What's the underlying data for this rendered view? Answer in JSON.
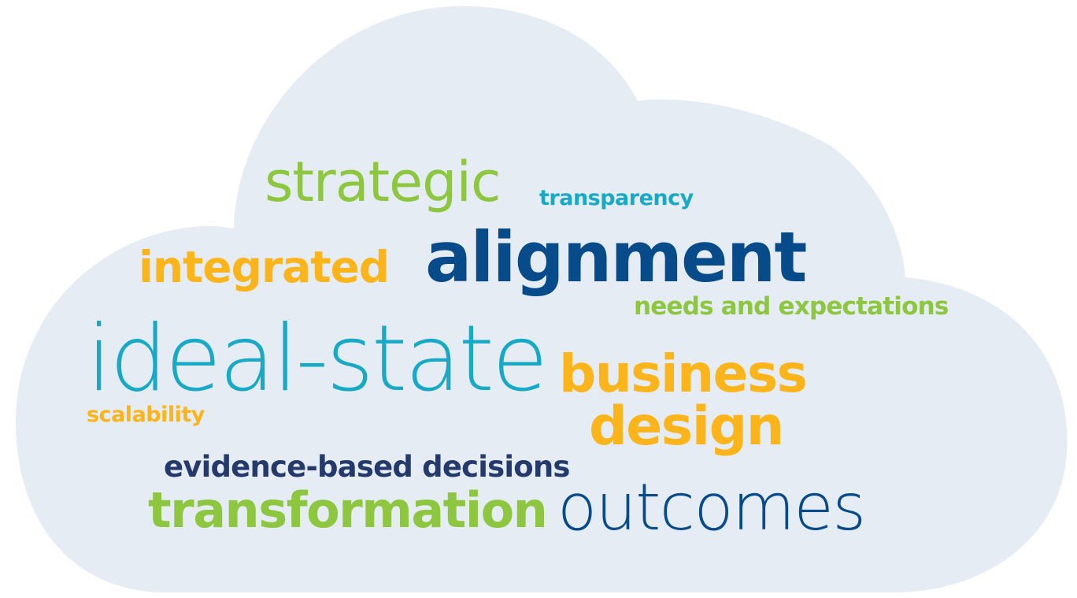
{
  "colors": {
    "cloud_fill": "#e6ecf4",
    "green": "#8dc63f",
    "teal": "#17a9c6",
    "orange": "#fbb41a",
    "dark_blue": "#084b8a",
    "navy": "#253a6c"
  },
  "words": {
    "strategic": {
      "text": "strategic",
      "color": "#8dc63f"
    },
    "transparency": {
      "text": "transparency",
      "color": "#17a9c6"
    },
    "integrated": {
      "text": "integrated",
      "color": "#fbb41a"
    },
    "alignment": {
      "text": "alignment",
      "color": "#084b8a"
    },
    "needs": {
      "text": "needs and expectations",
      "color": "#8dc63f"
    },
    "ideal_state": {
      "text": "ideal-state",
      "color": "#17a9c6"
    },
    "business": {
      "text": "business",
      "color": "#fbb41a"
    },
    "scalability": {
      "text": "scalability",
      "color": "#fbb41a"
    },
    "design": {
      "text": "design",
      "color": "#fbb41a"
    },
    "evidence": {
      "text": "evidence-based decisions",
      "color": "#253a6c"
    },
    "transformation": {
      "text": "transformation",
      "color": "#8dc63f"
    },
    "outcomes": {
      "text": "outcomes",
      "color": "#084b8a"
    }
  }
}
